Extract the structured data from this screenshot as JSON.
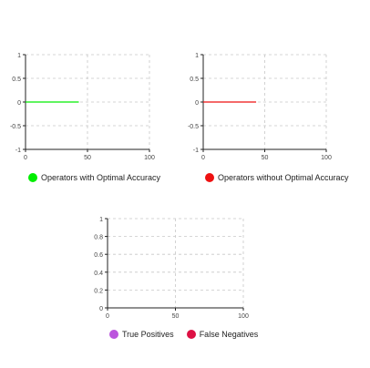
{
  "chart_data": [
    {
      "type": "line",
      "xlim": [
        0,
        100
      ],
      "ylim": [
        -1,
        1
      ],
      "x_ticks": [
        "0",
        "50",
        "100"
      ],
      "y_ticks": [
        "1",
        "0.5",
        "0",
        "-0.5",
        "-1"
      ],
      "grid": true,
      "legend_position": "bottom",
      "series": [
        {
          "name": "Operators with Optimal Accuracy",
          "color": "#00ee00",
          "x": [
            0,
            43
          ],
          "y": [
            0,
            0
          ]
        }
      ]
    },
    {
      "type": "line",
      "xlim": [
        0,
        100
      ],
      "ylim": [
        -1,
        1
      ],
      "x_ticks": [
        "0",
        "50",
        "100"
      ],
      "y_ticks": [
        "1",
        "0.5",
        "0",
        "-0.5",
        "-1"
      ],
      "grid": true,
      "legend_position": "bottom",
      "series": [
        {
          "name": "Operators without Optimal Accuracy",
          "color": "#ee1111",
          "x": [
            0,
            43
          ],
          "y": [
            0,
            0
          ]
        }
      ]
    },
    {
      "type": "line",
      "xlim": [
        0,
        100
      ],
      "ylim": [
        0,
        1
      ],
      "x_ticks": [
        "0",
        "50",
        "100"
      ],
      "y_ticks": [
        "1",
        "0.8",
        "0.6",
        "0.4",
        "0.2",
        "0"
      ],
      "grid": true,
      "legend_position": "bottom",
      "series": [
        {
          "name": "True Positives",
          "color": "#bb55dd",
          "x": [],
          "y": []
        },
        {
          "name": "False Negatives",
          "color": "#dd1144",
          "x": [],
          "y": []
        }
      ]
    }
  ]
}
